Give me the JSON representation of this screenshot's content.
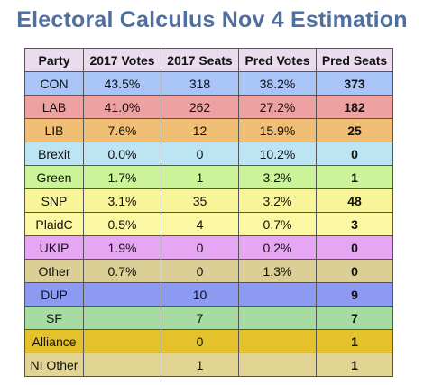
{
  "title": "Electoral Calculus Nov 4 Estimation",
  "table": {
    "headers": [
      "Party",
      "2017 Votes",
      "2017 Seats",
      "Pred Votes",
      "Pred Seats"
    ],
    "rows": [
      {
        "party": "CON",
        "votes_2017": "43.5%",
        "seats_2017": "318",
        "pred_votes": "38.2%",
        "pred_seats": "373",
        "color": "#a9c4f6"
      },
      {
        "party": "LAB",
        "votes_2017": "41.0%",
        "seats_2017": "262",
        "pred_votes": "27.2%",
        "pred_seats": "182",
        "color": "#eda1a1"
      },
      {
        "party": "LIB",
        "votes_2017": "7.6%",
        "seats_2017": "12",
        "pred_votes": "15.9%",
        "pred_seats": "25",
        "color": "#f1be75"
      },
      {
        "party": "Brexit",
        "votes_2017": "0.0%",
        "seats_2017": "0",
        "pred_votes": "10.2%",
        "pred_seats": "0",
        "color": "#bde4f3"
      },
      {
        "party": "Green",
        "votes_2017": "1.7%",
        "seats_2017": "1",
        "pred_votes": "3.2%",
        "pred_seats": "1",
        "color": "#caf39a"
      },
      {
        "party": "SNP",
        "votes_2017": "3.1%",
        "seats_2017": "35",
        "pred_votes": "3.2%",
        "pred_seats": "48",
        "color": "#f8f49a"
      },
      {
        "party": "PlaidC",
        "votes_2017": "0.5%",
        "seats_2017": "4",
        "pred_votes": "0.7%",
        "pred_seats": "3",
        "color": "#fbf7a2"
      },
      {
        "party": "UKIP",
        "votes_2017": "1.9%",
        "seats_2017": "0",
        "pred_votes": "0.2%",
        "pred_seats": "0",
        "color": "#e7a6f1"
      },
      {
        "party": "Other",
        "votes_2017": "0.7%",
        "seats_2017": "0",
        "pred_votes": "1.3%",
        "pred_seats": "0",
        "color": "#dccf95"
      },
      {
        "party": "DUP",
        "votes_2017": "",
        "seats_2017": "10",
        "pred_votes": "",
        "pred_seats": "9",
        "color": "#8c9bf1"
      },
      {
        "party": "SF",
        "votes_2017": "",
        "seats_2017": "7",
        "pred_votes": "",
        "pred_seats": "7",
        "color": "#a6dca2"
      },
      {
        "party": "Alliance",
        "votes_2017": "",
        "seats_2017": "0",
        "pred_votes": "",
        "pred_seats": "1",
        "color": "#e5c22c"
      },
      {
        "party": "NI Other",
        "votes_2017": "",
        "seats_2017": "1",
        "pred_votes": "",
        "pred_seats": "1",
        "color": "#e2d594"
      }
    ]
  }
}
